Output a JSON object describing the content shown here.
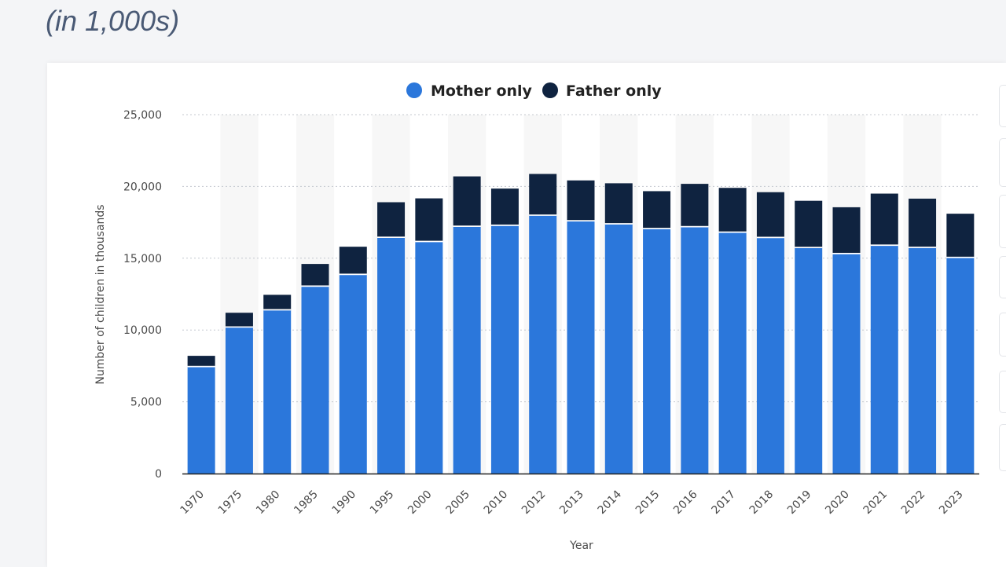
{
  "page": {
    "heading": "(in 1,000s)"
  },
  "chart_data": {
    "type": "bar",
    "stacked": true,
    "categories": [
      "1970",
      "1975",
      "1980",
      "1985",
      "1990",
      "1995",
      "2000",
      "2005",
      "2010",
      "2012",
      "2013",
      "2014",
      "2015",
      "2016",
      "2017",
      "2018",
      "2019",
      "2020",
      "2021",
      "2022",
      "2023"
    ],
    "series": [
      {
        "name": "Mother only",
        "color": "#2b77db",
        "values": [
          7450,
          10200,
          11400,
          13050,
          13870,
          16450,
          16160,
          17220,
          17290,
          17990,
          17600,
          17390,
          17060,
          17190,
          16810,
          16440,
          15740,
          15320,
          15900,
          15750,
          15050
        ]
      },
      {
        "name": "Father only",
        "color": "#0f2340",
        "values": [
          750,
          1000,
          1050,
          1550,
          1930,
          2450,
          3010,
          3480,
          2560,
          2880,
          2820,
          2830,
          2610,
          2990,
          3090,
          3160,
          3260,
          3230,
          3600,
          3400,
          3050
        ]
      }
    ],
    "xlabel": "Year",
    "ylabel": "Number of children in thousands",
    "ylim": [
      0,
      25000
    ],
    "yticks": [
      0,
      5000,
      10000,
      15000,
      20000,
      25000
    ],
    "ytick_labels": [
      "0",
      "5,000",
      "10,000",
      "15,000",
      "20,000",
      "25,000"
    ],
    "grid": true,
    "legend_position": "top-center"
  }
}
